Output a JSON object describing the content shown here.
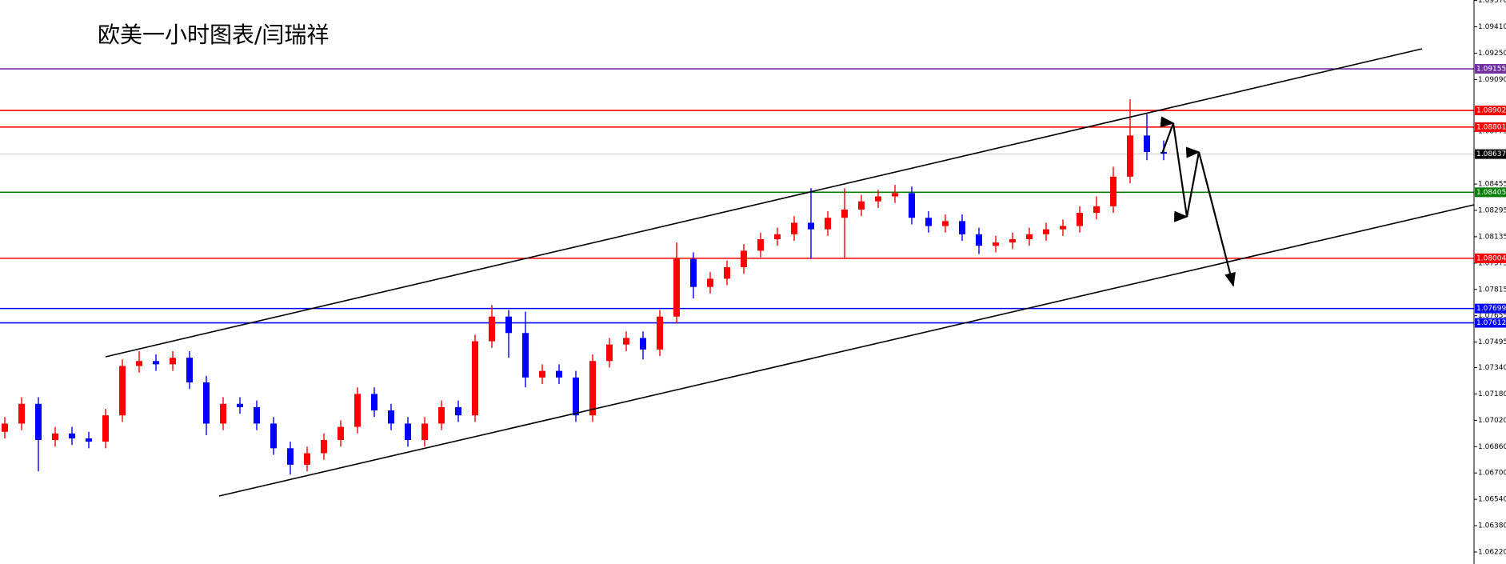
{
  "chart_data": {
    "type": "candlestick",
    "title": "欧美一小时图表/闫瑞祥",
    "ylim": [
      1.06147,
      1.09573
    ],
    "yticks": [
      {
        "value": 1.0957,
        "label": "1.09570"
      },
      {
        "value": 1.0941,
        "label": "1.09410"
      },
      {
        "value": 1.0925,
        "label": "1.09250"
      },
      {
        "value": 1.0909,
        "label": "1.09090"
      },
      {
        "value": 1.08775,
        "label": "1.08775"
      },
      {
        "value": 1.08455,
        "label": "1.08455"
      },
      {
        "value": 1.08295,
        "label": "1.08295"
      },
      {
        "value": 1.08135,
        "label": "1.08135"
      },
      {
        "value": 1.07975,
        "label": "1.07975"
      },
      {
        "value": 1.07815,
        "label": "1.07815"
      },
      {
        "value": 1.07655,
        "label": "1.07655"
      },
      {
        "value": 1.07495,
        "label": "1.07495"
      },
      {
        "value": 1.0734,
        "label": "1.07340"
      },
      {
        "value": 1.0718,
        "label": "1.07180"
      },
      {
        "value": 1.0702,
        "label": "1.07020"
      },
      {
        "value": 1.0686,
        "label": "1.06860"
      },
      {
        "value": 1.067,
        "label": "1.06700"
      },
      {
        "value": 1.0654,
        "label": "1.06540"
      },
      {
        "value": 1.0638,
        "label": "1.06380"
      },
      {
        "value": 1.0622,
        "label": "1.06220"
      }
    ],
    "up_color": "#ff0000",
    "down_color": "#0000ff",
    "series": {
      "open": [
        1.0695,
        1.07,
        1.0712,
        1.069,
        1.0694,
        1.0691,
        1.0689,
        1.0705,
        1.0735,
        1.0738,
        1.0736,
        1.074,
        1.0725,
        1.07,
        1.0712,
        1.071,
        1.07,
        1.0685,
        1.0675,
        1.0682,
        1.069,
        1.0698,
        1.0718,
        1.0708,
        1.07,
        1.069,
        1.07,
        1.071,
        1.0705,
        1.075,
        1.0765,
        1.0755,
        1.0728,
        1.0732,
        1.0728,
        1.0705,
        1.0738,
        1.0748,
        1.0752,
        1.0745,
        1.0765,
        1.08,
        1.0783,
        1.0788,
        1.0795,
        1.0805,
        1.0812,
        1.0815,
        1.0822,
        1.0818,
        1.0825,
        1.083,
        1.0835,
        1.0838,
        1.084,
        1.0825,
        1.082,
        1.0823,
        1.0815,
        1.0808,
        1.081,
        1.0812,
        1.0815,
        1.0818,
        1.082,
        1.0828,
        1.0832,
        1.085,
        1.0875,
        1.0865
      ],
      "high": [
        1.0704,
        1.0716,
        1.0716,
        1.0698,
        1.0698,
        1.0695,
        1.0709,
        1.0739,
        1.0744,
        1.0742,
        1.0744,
        1.0744,
        1.0729,
        1.0716,
        1.0716,
        1.0714,
        1.0704,
        1.0689,
        1.0686,
        1.0694,
        1.0702,
        1.0722,
        1.0722,
        1.0712,
        1.0704,
        1.0704,
        1.0714,
        1.0714,
        1.0754,
        1.0772,
        1.0769,
        1.0768,
        1.0736,
        1.0736,
        1.0732,
        1.0742,
        1.0752,
        1.0756,
        1.0756,
        1.0769,
        1.081,
        1.0804,
        1.0792,
        1.0799,
        1.0809,
        1.0816,
        1.0819,
        1.0826,
        1.0843,
        1.0829,
        1.0843,
        1.0839,
        1.0842,
        1.0845,
        1.0844,
        1.0829,
        1.0827,
        1.0827,
        1.0819,
        1.0814,
        1.0816,
        1.0819,
        1.0822,
        1.0824,
        1.0832,
        1.0838,
        1.0856,
        1.0897,
        1.0888,
        1.0872
      ],
      "low": [
        1.0691,
        1.0696,
        1.0671,
        1.0686,
        1.0687,
        1.0685,
        1.0685,
        1.0701,
        1.0731,
        1.0732,
        1.0732,
        1.0721,
        1.0693,
        1.0696,
        1.0706,
        1.0696,
        1.0681,
        1.0669,
        1.0671,
        1.0678,
        1.0686,
        1.0694,
        1.0704,
        1.0696,
        1.0686,
        1.0686,
        1.0696,
        1.0701,
        1.0701,
        1.0746,
        1.074,
        1.0722,
        1.0724,
        1.0724,
        1.0701,
        1.0701,
        1.0734,
        1.0744,
        1.0739,
        1.0741,
        1.0761,
        1.0776,
        1.0779,
        1.0784,
        1.0791,
        1.0801,
        1.0808,
        1.0811,
        1.08,
        1.0814,
        1.08,
        1.0826,
        1.0831,
        1.0834,
        1.0821,
        1.0816,
        1.0816,
        1.0811,
        1.0803,
        1.0804,
        1.0806,
        1.0808,
        1.0811,
        1.0814,
        1.0816,
        1.0824,
        1.0828,
        1.0846,
        1.086,
        1.086
      ],
      "close": [
        1.07,
        1.0712,
        1.069,
        1.0694,
        1.0691,
        1.0689,
        1.0705,
        1.0735,
        1.0738,
        1.0736,
        1.074,
        1.0725,
        1.07,
        1.0712,
        1.071,
        1.07,
        1.0685,
        1.0675,
        1.0682,
        1.069,
        1.0698,
        1.0718,
        1.0708,
        1.07,
        1.069,
        1.07,
        1.071,
        1.0705,
        1.075,
        1.0765,
        1.0755,
        1.0728,
        1.0732,
        1.0728,
        1.0705,
        1.0738,
        1.0748,
        1.0752,
        1.0745,
        1.0765,
        1.08,
        1.0783,
        1.0788,
        1.0795,
        1.0805,
        1.0812,
        1.0815,
        1.0822,
        1.0818,
        1.0825,
        1.083,
        1.0835,
        1.0838,
        1.084,
        1.0825,
        1.082,
        1.0823,
        1.0815,
        1.0808,
        1.081,
        1.0812,
        1.0815,
        1.0818,
        1.082,
        1.0828,
        1.0832,
        1.085,
        1.0875,
        1.0865,
        1.0864
      ]
    },
    "levels": [
      {
        "value": 1.09155,
        "label": "1.09155",
        "color": "#7030a0"
      },
      {
        "value": 1.08902,
        "label": "1.08902",
        "color": "#ff0000"
      },
      {
        "value": 1.08801,
        "label": "1.08801",
        "color": "#ff0000"
      },
      {
        "value": 1.08637,
        "label": "1.08637",
        "color": "#000000"
      },
      {
        "value": 1.08405,
        "label": "1.08405",
        "color": "#008000"
      },
      {
        "value": 1.08004,
        "label": "1.08004",
        "color": "#ff0000"
      },
      {
        "value": 1.07699,
        "label": "1.07699",
        "color": "#0000ff"
      },
      {
        "value": 1.07612,
        "label": "1.07612",
        "color": "#0000ff"
      }
    ]
  }
}
